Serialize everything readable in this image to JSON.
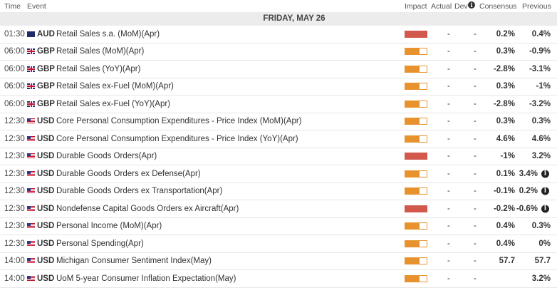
{
  "header": {
    "columns": [
      "Time",
      "Event",
      "Impact",
      "Actual",
      "Dev",
      "Consensus",
      "Previous"
    ]
  },
  "date": "FRIDAY, MAY 26",
  "rows": [
    {
      "time": "01:30",
      "currency": "AUD",
      "event": "Retail Sales s.a. (MoM)(Apr)",
      "impact": "high",
      "actual": "-",
      "dev": "-",
      "consensus": "0.2%",
      "previous": "0.4%"
    },
    {
      "time": "06:00",
      "currency": "GBP",
      "event": "Retail Sales (MoM)(Apr)",
      "impact": "medium",
      "actual": "-",
      "dev": "-",
      "consensus": "0.3%",
      "previous": "-0.9%"
    },
    {
      "time": "06:00",
      "currency": "GBP",
      "event": "Retail Sales (YoY)(Apr)",
      "impact": "medium",
      "actual": "-",
      "dev": "-",
      "consensus": "-2.8%",
      "previous": "-3.1%"
    },
    {
      "time": "06:00",
      "currency": "GBP",
      "event": "Retail Sales ex-Fuel (MoM)(Apr)",
      "impact": "medium",
      "actual": "-",
      "dev": "-",
      "consensus": "0.3%",
      "previous": "-1%"
    },
    {
      "time": "06:00",
      "currency": "GBP",
      "event": "Retail Sales ex-Fuel (YoY)(Apr)",
      "impact": "medium",
      "actual": "-",
      "dev": "-",
      "consensus": "-2.8%",
      "previous": "-3.2%"
    },
    {
      "time": "12:30",
      "currency": "USD",
      "event": "Core Personal Consumption Expenditures - Price Index (MoM)(Apr)",
      "impact": "medium",
      "actual": "-",
      "dev": "-",
      "consensus": "0.3%",
      "previous": "0.3%"
    },
    {
      "time": "12:30",
      "currency": "USD",
      "event": "Core Personal Consumption Expenditures - Price Index (YoY)(Apr)",
      "impact": "medium",
      "actual": "-",
      "dev": "-",
      "consensus": "4.6%",
      "previous": "4.6%"
    },
    {
      "time": "12:30",
      "currency": "USD",
      "event": "Durable Goods Orders(Apr)",
      "impact": "high",
      "actual": "-",
      "dev": "-",
      "consensus": "-1%",
      "previous": "3.2%"
    },
    {
      "time": "12:30",
      "currency": "USD",
      "event": "Durable Goods Orders ex Defense(Apr)",
      "impact": "medium",
      "actual": "-",
      "dev": "-",
      "consensus": "0.1%",
      "previous": "3.4%",
      "revised": true
    },
    {
      "time": "12:30",
      "currency": "USD",
      "event": "Durable Goods Orders ex Transportation(Apr)",
      "impact": "medium",
      "actual": "-",
      "dev": "-",
      "consensus": "-0.1%",
      "previous": "0.2%",
      "revised": true
    },
    {
      "time": "12:30",
      "currency": "USD",
      "event": "Nondefense Capital Goods Orders ex Aircraft(Apr)",
      "impact": "high",
      "actual": "-",
      "dev": "-",
      "consensus": "-0.2%",
      "previous": "-0.6%",
      "revised": true
    },
    {
      "time": "12:30",
      "currency": "USD",
      "event": "Personal Income (MoM)(Apr)",
      "impact": "medium",
      "actual": "-",
      "dev": "-",
      "consensus": "0.4%",
      "previous": "0.3%"
    },
    {
      "time": "12:30",
      "currency": "USD",
      "event": "Personal Spending(Apr)",
      "impact": "medium",
      "actual": "-",
      "dev": "-",
      "consensus": "0.4%",
      "previous": "0%"
    },
    {
      "time": "14:00",
      "currency": "USD",
      "event": "Michigan Consumer Sentiment Index(May)",
      "impact": "medium",
      "actual": "-",
      "dev": "-",
      "consensus": "57.7",
      "previous": "57.7"
    },
    {
      "time": "14:00",
      "currency": "USD",
      "event": "UoM 5-year Consumer Inflation Expectation(May)",
      "impact": "medium",
      "actual": "-",
      "dev": "-",
      "previous": "3.2%"
    }
  ]
}
